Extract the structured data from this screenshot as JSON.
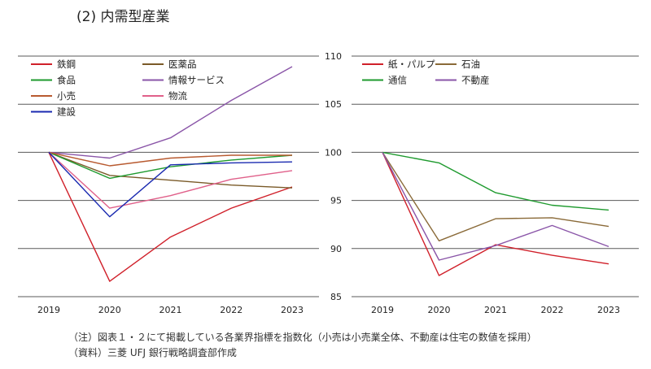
{
  "title": "(2)  内需型産業",
  "notes": {
    "note": "（注）図表１・２にて掲載している各業界指標を指数化（小売は小売業全体、不動産は住宅の数値を採用）",
    "source": "（資料）三菱 UFJ 銀行戦略調査部作成"
  },
  "chart_data": [
    {
      "type": "line",
      "categories": [
        "2019",
        "2020",
        "2021",
        "2022",
        "2023"
      ],
      "ylim": [
        85,
        110
      ],
      "yticks": [
        85,
        90,
        95,
        100,
        105,
        110
      ],
      "show_ytick_labels": false,
      "grid": true,
      "legend_position": "top-left",
      "series": [
        {
          "name": "鉄鋼",
          "color": "#d0202a",
          "values": [
            100,
            86.6,
            91.2,
            94.2,
            96.4
          ]
        },
        {
          "name": "医薬品",
          "color": "#7a5a28",
          "values": [
            100,
            97.6,
            97.1,
            96.6,
            96.3
          ]
        },
        {
          "name": "食品",
          "color": "#1e9a2e",
          "values": [
            100,
            97.3,
            98.5,
            99.2,
            99.7
          ]
        },
        {
          "name": "情報サービス",
          "color": "#8a55a8",
          "values": [
            100,
            99.4,
            101.5,
            105.4,
            108.9
          ]
        },
        {
          "name": "小売",
          "color": "#b85a30",
          "values": [
            100,
            98.6,
            99.4,
            99.7,
            99.7
          ]
        },
        {
          "name": "物流",
          "color": "#e0608a",
          "values": [
            100,
            94.2,
            95.5,
            97.2,
            98.1
          ]
        },
        {
          "name": "建設",
          "color": "#1a2ab0",
          "values": [
            100,
            93.3,
            98.7,
            98.9,
            99.0
          ]
        }
      ]
    },
    {
      "type": "line",
      "categories": [
        "2019",
        "2020",
        "2021",
        "2022",
        "2023"
      ],
      "ylim": [
        85,
        110
      ],
      "yticks": [
        85,
        90,
        95,
        100,
        105,
        110
      ],
      "show_ytick_labels": true,
      "grid": true,
      "legend_position": "top-left",
      "series": [
        {
          "name": "紙・パルプ",
          "color": "#d0202a",
          "values": [
            100,
            87.2,
            90.4,
            89.3,
            88.4
          ]
        },
        {
          "name": "石油",
          "color": "#8a6a38",
          "values": [
            100,
            90.8,
            93.1,
            93.2,
            92.3
          ]
        },
        {
          "name": "通信",
          "color": "#1e9a2e",
          "values": [
            100,
            98.9,
            95.8,
            94.5,
            94.0
          ]
        },
        {
          "name": "不動産",
          "color": "#8a55a8",
          "values": [
            100,
            88.8,
            90.3,
            92.4,
            90.2
          ]
        }
      ]
    }
  ]
}
